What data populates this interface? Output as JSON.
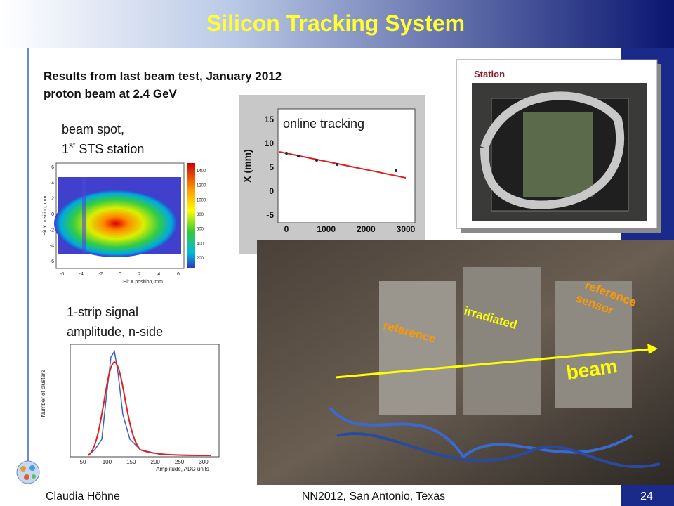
{
  "header": {
    "title": "Silicon Tracking System"
  },
  "intro": [
    "Results from last beam test, January 2012",
    "proton beam at 2.4 GeV"
  ],
  "station_photo": {
    "label": "Station"
  },
  "beam_spot": {
    "caption": [
      "beam spot,",
      "1",
      "st",
      " STS station"
    ],
    "y_axis": "Hit Y position, mm",
    "x_axis": "Hit X position, mm",
    "xticks": [
      "-6",
      "-4",
      "-2",
      "0",
      "2",
      "4",
      "6"
    ],
    "yticks": [
      "6",
      "4",
      "2",
      "0",
      "-2",
      "-4",
      "-6"
    ],
    "color_scale": [
      "1400",
      "1200",
      "1000",
      "800",
      "600",
      "400",
      "200"
    ]
  },
  "tracking_plot": {
    "caption": "online tracking",
    "y_axis": "X (mm)",
    "x_axis": "Z (mm)",
    "xticks": [
      "0",
      "1000",
      "2000",
      "3000"
    ],
    "yticks": [
      "15",
      "10",
      "5",
      "0",
      "-5"
    ]
  },
  "signal_plot": {
    "caption": [
      "1-strip signal",
      "amplitude, n-side"
    ],
    "y_axis": "Number of clusters",
    "x_axis": "Amplitude, ADC units",
    "xticks": [
      "50",
      "100",
      "150",
      "200",
      "250",
      "300"
    ]
  },
  "setup_photo": {
    "labels": [
      "reference sensor",
      "irradiated",
      "reference",
      "beam"
    ]
  },
  "footer": {
    "author": "Claudia Höhne",
    "event": "NN2012, San Antonio, Texas",
    "page": "24"
  }
}
